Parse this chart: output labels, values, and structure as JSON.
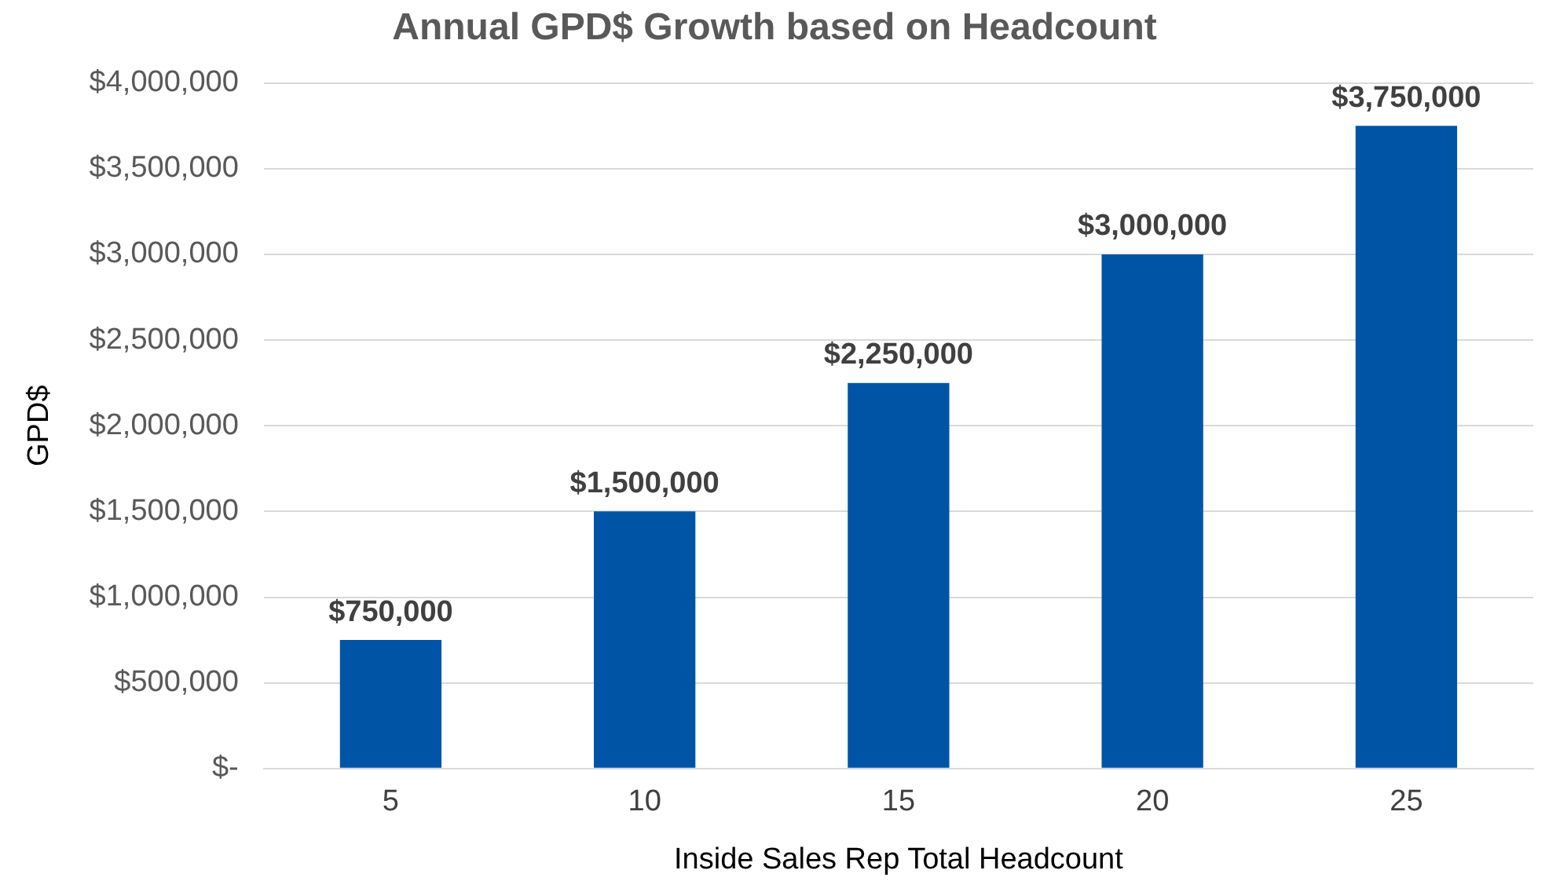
{
  "chart_data": {
    "type": "bar",
    "title": "Annual GPD$ Growth based on Headcount",
    "xlabel": "Inside Sales Rep Total Headcount",
    "ylabel": "GPD$",
    "categories": [
      "5",
      "10",
      "15",
      "20",
      "25"
    ],
    "values": [
      750000,
      1500000,
      2250000,
      3000000,
      3750000
    ],
    "value_labels": [
      "$750,000",
      "$1,500,000",
      "$2,250,000",
      "$3,000,000",
      "$3,750,000"
    ],
    "color": "#0054a6",
    "ylim": [
      0,
      4000000
    ],
    "yticks": [
      {
        "value": 0,
        "label": "$-"
      },
      {
        "value": 500000,
        "label": "$500,000"
      },
      {
        "value": 1000000,
        "label": "$1,000,000"
      },
      {
        "value": 1500000,
        "label": "$1,500,000"
      },
      {
        "value": 2000000,
        "label": "$2,000,000"
      },
      {
        "value": 2500000,
        "label": "$2,500,000"
      },
      {
        "value": 3000000,
        "label": "$3,000,000"
      },
      {
        "value": 3500000,
        "label": "$3,500,000"
      },
      {
        "value": 4000000,
        "label": "$4,000,000"
      }
    ],
    "grid": "y",
    "legend": false
  }
}
